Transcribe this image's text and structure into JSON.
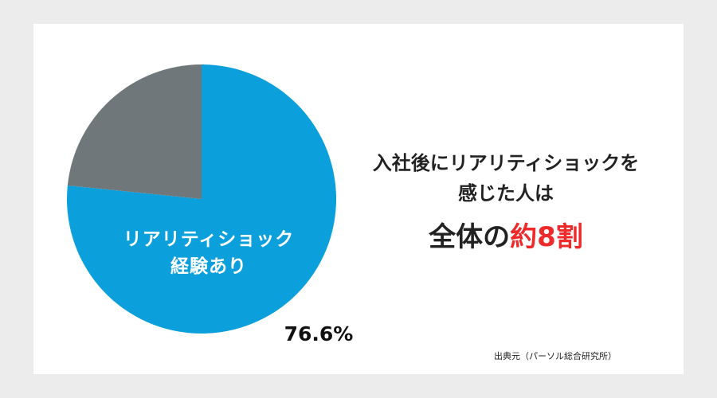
{
  "chart_data": {
    "type": "pie",
    "categories": [
      "リアリティショック\n経験あり",
      null
    ],
    "values": [
      76.6,
      23.4
    ],
    "value_labels": [
      "76.6%",
      null
    ],
    "colors": [
      "#0ba0dc",
      "#6f777b"
    ],
    "title": "入社後にリアリティショックを\n感じた人は",
    "headline": {
      "lead": "全体の",
      "emphasis": "約8割"
    },
    "source": "出典元（パーソル総合研究所）"
  }
}
